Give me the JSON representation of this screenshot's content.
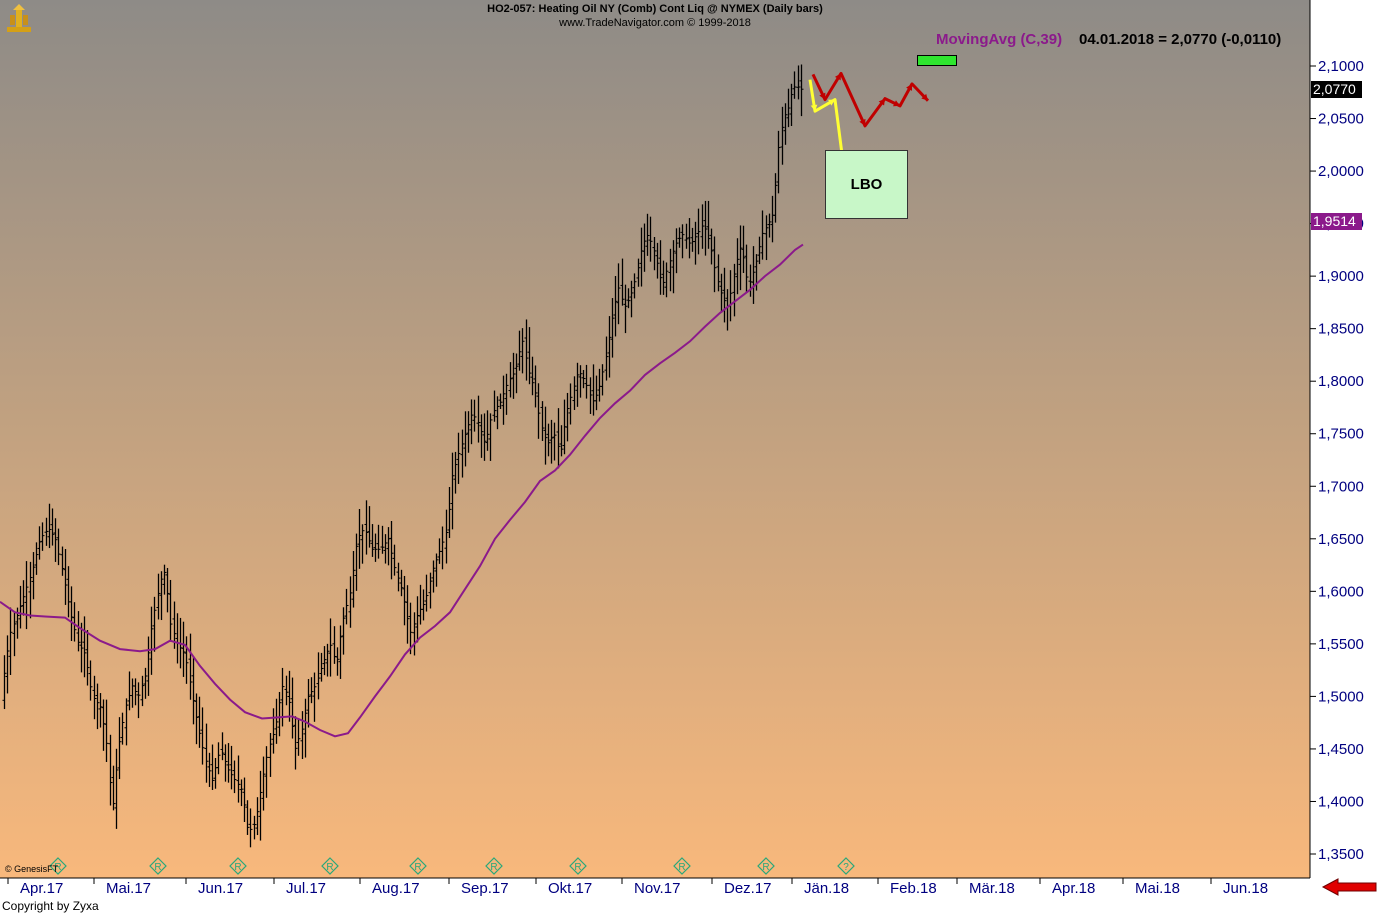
{
  "header": {
    "title": "HO2-057:  Heating Oil NY (Comb) Cont Liq @ NYMEX  (Daily bars)",
    "subtitle": "www.TradeNavigator.com © 1999-2018"
  },
  "indicator": {
    "label": "MovingAvg (C,39)",
    "value_text": "04.01.2018 = 2,0770 (-0,0110)"
  },
  "price_labels": {
    "last": "2,0770",
    "moving_avg": "1,9514"
  },
  "annotation": {
    "box_label": "LBO"
  },
  "footer": {
    "copyright": "Copyright by Zyxa",
    "watermark": "© GenesisFT"
  },
  "colors": {
    "background_top": "#8e8b87",
    "background_bottom": "#f6b87d",
    "moving_average": "#8b1a8b",
    "bars": "#000000",
    "forecast_red": "#c00000",
    "forecast_yellow": "#ffff33",
    "axis_text": "#000080",
    "roll_marker": "#2aa87a"
  },
  "chart_data": {
    "type": "ohlc-bar",
    "ylim": [
      1.32,
      2.13
    ],
    "y_ticks": [
      "2,1000",
      "2,0500",
      "2,0000",
      "1,9500",
      "1,9000",
      "1,8500",
      "1,8000",
      "1,7500",
      "1,7000",
      "1,6500",
      "1,6000",
      "1,5500",
      "1,5000",
      "1,4500",
      "1,4000",
      "1,3500"
    ],
    "x_ticks": [
      "Apr.17",
      "Mai.17",
      "Jun.17",
      "Jul.17",
      "Aug.17",
      "Sep.17",
      "Okt.17",
      "Nov.17",
      "Dez.17",
      "Jän.18",
      "Feb.18",
      "Mär.18",
      "Apr.18",
      "Mai.18",
      "Jun.18"
    ],
    "roll_marker_labels": [
      "R",
      "R",
      "R",
      "R",
      "R",
      "R",
      "R",
      "R",
      "R",
      "?"
    ],
    "last_close": 2.077,
    "moving_average_last": 1.9514,
    "close_path": [
      [
        0,
        1.49
      ],
      [
        5,
        1.53
      ],
      [
        10,
        1.56
      ],
      [
        18,
        1.58
      ],
      [
        25,
        1.6
      ],
      [
        32,
        1.62
      ],
      [
        40,
        1.65
      ],
      [
        48,
        1.66
      ],
      [
        55,
        1.65
      ],
      [
        62,
        1.62
      ],
      [
        70,
        1.58
      ],
      [
        78,
        1.55
      ],
      [
        85,
        1.54
      ],
      [
        92,
        1.5
      ],
      [
        100,
        1.49
      ],
      [
        106,
        1.46
      ],
      [
        112,
        1.39
      ],
      [
        118,
        1.45
      ],
      [
        125,
        1.49
      ],
      [
        132,
        1.51
      ],
      [
        138,
        1.5
      ],
      [
        145,
        1.52
      ],
      [
        152,
        1.57
      ],
      [
        160,
        1.61
      ],
      [
        165,
        1.62
      ],
      [
        170,
        1.57
      ],
      [
        177,
        1.55
      ],
      [
        185,
        1.54
      ],
      [
        192,
        1.5
      ],
      [
        198,
        1.47
      ],
      [
        205,
        1.44
      ],
      [
        212,
        1.42
      ],
      [
        220,
        1.45
      ],
      [
        228,
        1.43
      ],
      [
        235,
        1.42
      ],
      [
        242,
        1.41
      ],
      [
        248,
        1.37
      ],
      [
        255,
        1.38
      ],
      [
        262,
        1.42
      ],
      [
        268,
        1.45
      ],
      [
        275,
        1.47
      ],
      [
        282,
        1.51
      ],
      [
        288,
        1.5
      ],
      [
        295,
        1.45
      ],
      [
        302,
        1.47
      ],
      [
        308,
        1.5
      ],
      [
        315,
        1.51
      ],
      [
        322,
        1.53
      ],
      [
        330,
        1.55
      ],
      [
        336,
        1.53
      ],
      [
        342,
        1.57
      ],
      [
        350,
        1.6
      ],
      [
        357,
        1.65
      ],
      [
        364,
        1.66
      ],
      [
        372,
        1.64
      ],
      [
        380,
        1.64
      ],
      [
        388,
        1.65
      ],
      [
        395,
        1.62
      ],
      [
        402,
        1.6
      ],
      [
        410,
        1.56
      ],
      [
        418,
        1.58
      ],
      [
        425,
        1.59
      ],
      [
        432,
        1.62
      ],
      [
        440,
        1.64
      ],
      [
        447,
        1.66
      ],
      [
        452,
        1.71
      ],
      [
        458,
        1.73
      ],
      [
        465,
        1.75
      ],
      [
        472,
        1.77
      ],
      [
        478,
        1.76
      ],
      [
        485,
        1.74
      ],
      [
        492,
        1.77
      ],
      [
        500,
        1.78
      ],
      [
        508,
        1.8
      ],
      [
        515,
        1.81
      ],
      [
        522,
        1.84
      ],
      [
        528,
        1.81
      ],
      [
        535,
        1.79
      ],
      [
        540,
        1.76
      ],
      [
        547,
        1.74
      ],
      [
        554,
        1.75
      ],
      [
        560,
        1.73
      ],
      [
        566,
        1.77
      ],
      [
        572,
        1.79
      ],
      [
        578,
        1.81
      ],
      [
        585,
        1.8
      ],
      [
        592,
        1.78
      ],
      [
        598,
        1.79
      ],
      [
        605,
        1.82
      ],
      [
        612,
        1.86
      ],
      [
        618,
        1.89
      ],
      [
        624,
        1.87
      ],
      [
        630,
        1.88
      ],
      [
        636,
        1.9
      ],
      [
        642,
        1.93
      ],
      [
        648,
        1.94
      ],
      [
        655,
        1.92
      ],
      [
        662,
        1.89
      ],
      [
        668,
        1.91
      ],
      [
        675,
        1.93
      ],
      [
        682,
        1.94
      ],
      [
        690,
        1.93
      ],
      [
        697,
        1.94
      ],
      [
        703,
        1.95
      ],
      [
        710,
        1.93
      ],
      [
        716,
        1.9
      ],
      [
        722,
        1.88
      ],
      [
        728,
        1.87
      ],
      [
        735,
        1.91
      ],
      [
        741,
        1.93
      ],
      [
        748,
        1.89
      ],
      [
        755,
        1.91
      ],
      [
        762,
        1.94
      ],
      [
        768,
        1.95
      ],
      [
        773,
        1.96
      ],
      [
        778,
        2.02
      ],
      [
        783,
        2.05
      ],
      [
        788,
        2.06
      ],
      [
        793,
        2.08
      ],
      [
        798,
        2.08
      ],
      [
        802,
        2.077
      ]
    ],
    "moving_average_path": [
      [
        0,
        1.59
      ],
      [
        15,
        1.58
      ],
      [
        30,
        1.577
      ],
      [
        45,
        1.576
      ],
      [
        65,
        1.575
      ],
      [
        80,
        1.565
      ],
      [
        100,
        1.553
      ],
      [
        120,
        1.545
      ],
      [
        140,
        1.543
      ],
      [
        155,
        1.545
      ],
      [
        170,
        1.553
      ],
      [
        185,
        1.549
      ],
      [
        200,
        1.529
      ],
      [
        215,
        1.512
      ],
      [
        230,
        1.497
      ],
      [
        245,
        1.485
      ],
      [
        262,
        1.479
      ],
      [
        278,
        1.48
      ],
      [
        292,
        1.481
      ],
      [
        305,
        1.476
      ],
      [
        320,
        1.468
      ],
      [
        335,
        1.462
      ],
      [
        348,
        1.465
      ],
      [
        360,
        1.48
      ],
      [
        375,
        1.5
      ],
      [
        390,
        1.519
      ],
      [
        405,
        1.54
      ],
      [
        420,
        1.556
      ],
      [
        435,
        1.567
      ],
      [
        450,
        1.58
      ],
      [
        465,
        1.602
      ],
      [
        480,
        1.624
      ],
      [
        495,
        1.65
      ],
      [
        510,
        1.668
      ],
      [
        525,
        1.685
      ],
      [
        540,
        1.705
      ],
      [
        555,
        1.715
      ],
      [
        570,
        1.73
      ],
      [
        585,
        1.748
      ],
      [
        600,
        1.765
      ],
      [
        615,
        1.779
      ],
      [
        630,
        1.791
      ],
      [
        645,
        1.806
      ],
      [
        660,
        1.817
      ],
      [
        675,
        1.827
      ],
      [
        690,
        1.838
      ],
      [
        705,
        1.852
      ],
      [
        720,
        1.865
      ],
      [
        735,
        1.876
      ],
      [
        750,
        1.887
      ],
      [
        765,
        1.9
      ],
      [
        780,
        1.911
      ],
      [
        795,
        1.925
      ],
      [
        803,
        1.93
      ]
    ],
    "forecast_red_path": [
      [
        813,
        2.092
      ],
      [
        825,
        2.068
      ],
      [
        841,
        2.093
      ],
      [
        865,
        2.043
      ],
      [
        885,
        2.069
      ],
      [
        900,
        2.062
      ],
      [
        912,
        2.083
      ],
      [
        928,
        2.067
      ]
    ],
    "forecast_yellow_path": [
      [
        810,
        2.087
      ],
      [
        815,
        2.057
      ],
      [
        835,
        2.068
      ],
      [
        845,
        1.994
      ]
    ]
  }
}
